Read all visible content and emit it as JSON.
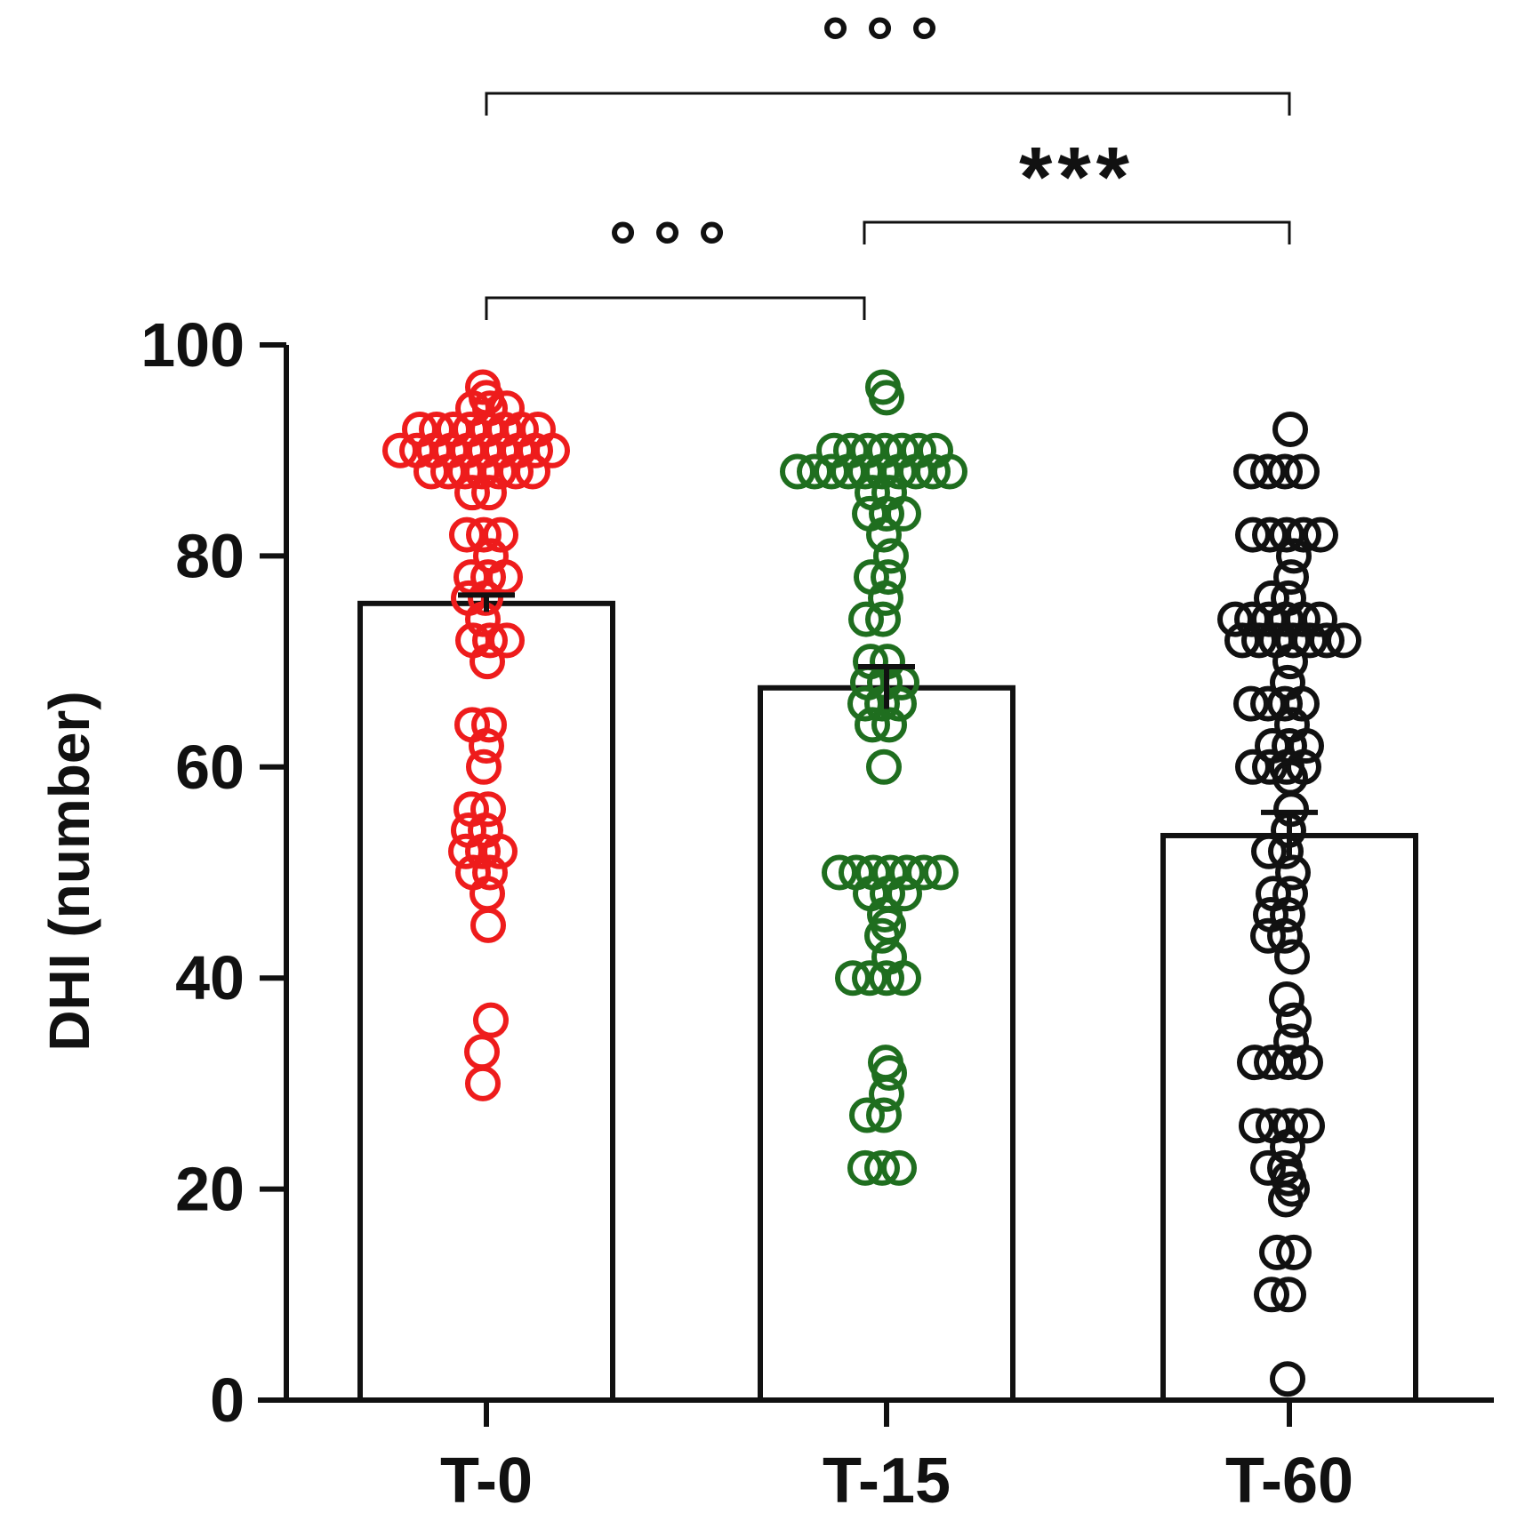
{
  "chart_data": {
    "type": "bar",
    "title": "",
    "xlabel": "",
    "ylabel": "DHI (number)",
    "ylim": [
      0,
      100
    ],
    "yticks": [
      "0",
      "20",
      "40",
      "60",
      "80",
      "100"
    ],
    "grid": false,
    "categories": [
      "T-0",
      "T-15",
      "T-60"
    ],
    "means": [
      75.5,
      67.5,
      53.5
    ],
    "sem": [
      0.8,
      2.0,
      2.2
    ],
    "colors": [
      "#ee1c1c",
      "#1f6e1f",
      "#111111"
    ],
    "points": [
      [
        90,
        90,
        90,
        90,
        90,
        90,
        90,
        90,
        90,
        90,
        88,
        88,
        88,
        88,
        88,
        88,
        88,
        92,
        92,
        92,
        92,
        92,
        92,
        92,
        92,
        94,
        94,
        94,
        96,
        95,
        86,
        86,
        82,
        82,
        82,
        80,
        78,
        78,
        78,
        76,
        76,
        74,
        72,
        72,
        72,
        70,
        64,
        64,
        62,
        60,
        56,
        56,
        54,
        54,
        52,
        52,
        52,
        50,
        50,
        48,
        45,
        36,
        33,
        30
      ],
      [
        88,
        88,
        88,
        88,
        88,
        88,
        88,
        88,
        88,
        88,
        90,
        90,
        90,
        90,
        90,
        90,
        90,
        96,
        95,
        86,
        86,
        84,
        84,
        84,
        82,
        80,
        78,
        78,
        76,
        74,
        74,
        70,
        70,
        68,
        68,
        68,
        66,
        66,
        66,
        64,
        64,
        60,
        50,
        50,
        50,
        50,
        50,
        50,
        50,
        48,
        48,
        48,
        46,
        45,
        44,
        42,
        40,
        40,
        40,
        40,
        32,
        31,
        29,
        27,
        27,
        22,
        22,
        22
      ],
      [
        92,
        88,
        88,
        88,
        88,
        82,
        82,
        82,
        82,
        82,
        80,
        78,
        76,
        76,
        74,
        74,
        74,
        74,
        74,
        74,
        72,
        72,
        72,
        72,
        72,
        72,
        72,
        70,
        68,
        66,
        66,
        66,
        66,
        64,
        62,
        62,
        62,
        60,
        60,
        60,
        60,
        59,
        56,
        54,
        52,
        52,
        50,
        48,
        48,
        46,
        46,
        44,
        44,
        42,
        38,
        36,
        34,
        32,
        32,
        32,
        32,
        26,
        26,
        26,
        26,
        24,
        22,
        22,
        21,
        20,
        19,
        14,
        14,
        10,
        10,
        2
      ]
    ],
    "comparisons": [
      {
        "from": 0,
        "to": 1,
        "label": "°°°"
      },
      {
        "from": 1,
        "to": 2,
        "label": "***"
      },
      {
        "from": 0,
        "to": 2,
        "label": "°°°"
      }
    ]
  }
}
